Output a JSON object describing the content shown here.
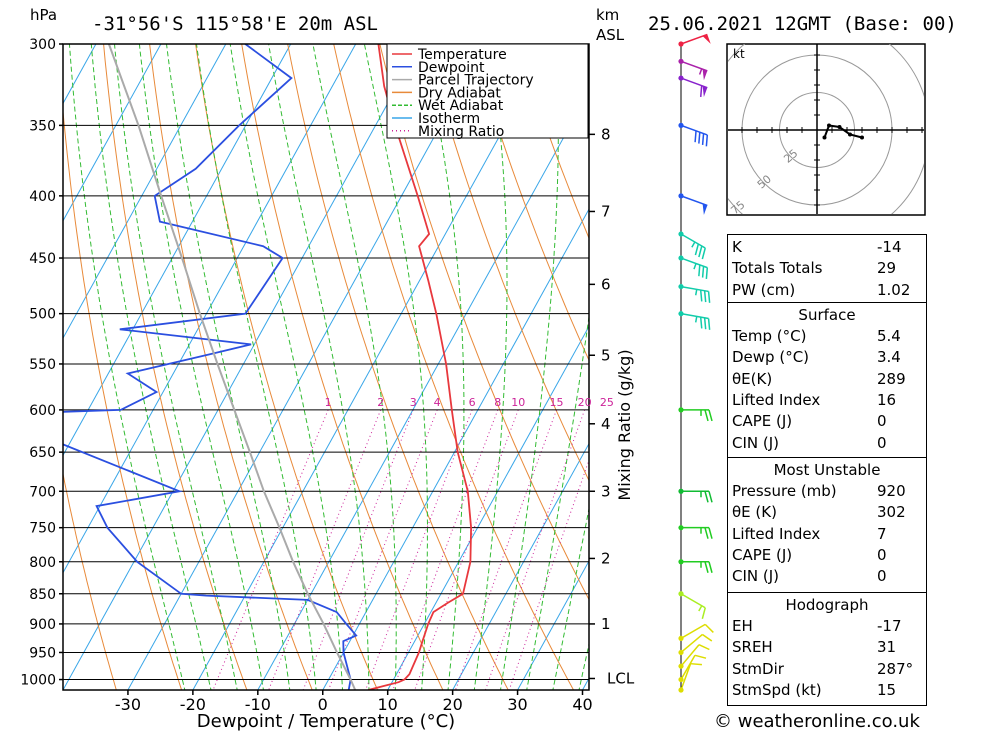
{
  "header": {
    "title": "-31°56'S  115°58'E  20m  ASL",
    "datetime": "25.06.2021  12GMT  (Base: 00)",
    "left_unit": "hPa",
    "right_unit_top": "km",
    "right_unit_bottom": "ASL"
  },
  "legend": {
    "items": [
      {
        "label": "Temperature",
        "color": "#e8383d",
        "style": "solid"
      },
      {
        "label": "Dewpoint",
        "color": "#2b4fe0",
        "style": "solid"
      },
      {
        "label": "Parcel Trajectory",
        "color": "#aaaaaa",
        "style": "solid"
      },
      {
        "label": "Dry Adiabat",
        "color": "#e88a3a",
        "style": "solid"
      },
      {
        "label": "Wet Adiabat",
        "color": "#33bb33",
        "style": "dashed"
      },
      {
        "label": "Isotherm",
        "color": "#39a6e8",
        "style": "solid"
      },
      {
        "label": "Mixing Ratio",
        "color": "#cc2299",
        "style": "dotted"
      }
    ]
  },
  "chart_data": {
    "type": "skew-t",
    "xlabel": "Dewpoint / Temperature (°C)",
    "x_ticks": [
      -30,
      -20,
      -10,
      0,
      10,
      20,
      30,
      40
    ],
    "x_range": [
      -40,
      41
    ],
    "p_ticks": [
      300,
      350,
      400,
      450,
      500,
      550,
      600,
      650,
      700,
      750,
      800,
      850,
      900,
      950,
      1000
    ],
    "p_range": [
      300,
      1020
    ],
    "skew_deg_per_log": 45,
    "height_axis": {
      "label": "Mixing Ratio (g/kg)",
      "km_ticks": [
        {
          "label": "8",
          "p": 356
        },
        {
          "label": "7",
          "p": 412
        },
        {
          "label": "6",
          "p": 473
        },
        {
          "label": "5",
          "p": 541
        },
        {
          "label": "4",
          "p": 616
        },
        {
          "label": "3",
          "p": 700
        },
        {
          "label": "2",
          "p": 795
        },
        {
          "label": "1",
          "p": 900
        },
        {
          "label": "LCL",
          "p": 998
        }
      ]
    },
    "mixing_ratio_labels": [
      "1",
      "2",
      "3",
      "4",
      "6",
      "8",
      "10",
      "15",
      "20",
      "25"
    ],
    "mixing_ratio_values": [
      1,
      2,
      3,
      4,
      6,
      8,
      10,
      15,
      20,
      25
    ],
    "series": [
      {
        "name": "Temperature",
        "color": "#e8383d",
        "points": [
          [
            1020,
            7.0
          ],
          [
            1005,
            11.0
          ],
          [
            1000,
            11.7
          ],
          [
            990,
            12.0
          ],
          [
            950,
            11.6
          ],
          [
            930,
            11.2
          ],
          [
            900,
            10.6
          ],
          [
            880,
            10.4
          ],
          [
            865,
            11.8
          ],
          [
            850,
            13.4
          ],
          [
            800,
            11.8
          ],
          [
            750,
            9.0
          ],
          [
            700,
            5.4
          ],
          [
            650,
            0.5
          ],
          [
            600,
            -4.0
          ],
          [
            550,
            -8.8
          ],
          [
            500,
            -14.6
          ],
          [
            470,
            -18.6
          ],
          [
            440,
            -23.0
          ],
          [
            430,
            -22.5
          ],
          [
            400,
            -27.5
          ],
          [
            350,
            -37.0
          ],
          [
            325,
            -42.0
          ],
          [
            300,
            -46.5
          ]
        ]
      },
      {
        "name": "Dewpoint",
        "color": "#2b4fe0",
        "points": [
          [
            1020,
            4.0
          ],
          [
            1000,
            3.4
          ],
          [
            950,
            0.0
          ],
          [
            930,
            -1.0
          ],
          [
            920,
            0.5
          ],
          [
            900,
            -2.0
          ],
          [
            880,
            -4.5
          ],
          [
            860,
            -10.0
          ],
          [
            853,
            -26.0
          ],
          [
            850,
            -30.0
          ],
          [
            800,
            -39.5
          ],
          [
            750,
            -47.0
          ],
          [
            720,
            -50.5
          ],
          [
            700,
            -39.0
          ],
          [
            605,
            -75.0
          ],
          [
            600,
            -55.0
          ],
          [
            580,
            -51.0
          ],
          [
            560,
            -57.0
          ],
          [
            540,
            -46.0
          ],
          [
            530,
            -40.5
          ],
          [
            515,
            -62.0
          ],
          [
            500,
            -44.0
          ],
          [
            450,
            -43.0
          ],
          [
            440,
            -47.0
          ],
          [
            420,
            -65.0
          ],
          [
            400,
            -68.0
          ],
          [
            380,
            -64.0
          ],
          [
            350,
            -61.0
          ],
          [
            320,
            -57.0
          ],
          [
            300,
            -67.0
          ]
        ]
      },
      {
        "name": "Parcel Trajectory",
        "color": "#aaaaaa",
        "points": [
          [
            1020,
            5.0
          ],
          [
            1000,
            3.4
          ],
          [
            950,
            -1.0
          ],
          [
            900,
            -5.5
          ],
          [
            850,
            -10.5
          ],
          [
            800,
            -15.5
          ],
          [
            750,
            -20.5
          ],
          [
            700,
            -26.0
          ],
          [
            650,
            -31.5
          ],
          [
            600,
            -37.5
          ],
          [
            550,
            -44.0
          ],
          [
            500,
            -51.0
          ],
          [
            450,
            -58.5
          ],
          [
            400,
            -67.0
          ],
          [
            350,
            -76.5
          ],
          [
            300,
            -88.0
          ]
        ]
      }
    ],
    "wind_barbs": [
      {
        "p": 1020,
        "dir": 200,
        "spd": 10,
        "color": "#dddd00"
      },
      {
        "p": 1000,
        "dir": 210,
        "spd": 10,
        "color": "#dddd00"
      },
      {
        "p": 975,
        "dir": 220,
        "spd": 10,
        "color": "#dddd00"
      },
      {
        "p": 950,
        "dir": 230,
        "spd": 10,
        "color": "#dddd00"
      },
      {
        "p": 925,
        "dir": 240,
        "spd": 10,
        "color": "#dddd00"
      },
      {
        "p": 850,
        "dir": 300,
        "spd": 15,
        "color": "#aaee22"
      },
      {
        "p": 800,
        "dir": 270,
        "spd": 25,
        "color": "#22cc22"
      },
      {
        "p": 750,
        "dir": 270,
        "spd": 25,
        "color": "#22cc22"
      },
      {
        "p": 700,
        "dir": 270,
        "spd": 25,
        "color": "#11bb33"
      },
      {
        "p": 600,
        "dir": 270,
        "spd": 25,
        "color": "#22cc22"
      },
      {
        "p": 500,
        "dir": 280,
        "spd": 35,
        "color": "#11ccaa"
      },
      {
        "p": 475,
        "dir": 280,
        "spd": 35,
        "color": "#11ccaa"
      },
      {
        "p": 450,
        "dir": 290,
        "spd": 35,
        "color": "#11ccaa"
      },
      {
        "p": 430,
        "dir": 300,
        "spd": 35,
        "color": "#11ccaa"
      },
      {
        "p": 400,
        "dir": 290,
        "spd": 50,
        "color": "#2255ee"
      },
      {
        "p": 350,
        "dir": 290,
        "spd": 40,
        "color": "#2255ee"
      },
      {
        "p": 320,
        "dir": 290,
        "spd": 60,
        "color": "#8822cc"
      },
      {
        "p": 310,
        "dir": 290,
        "spd": 55,
        "color": "#aa22aa"
      },
      {
        "p": 300,
        "dir": 250,
        "spd": 50,
        "color": "#ee2244"
      }
    ],
    "hodograph": {
      "unit_label": "kt",
      "ring_labels": [
        "25",
        "50",
        "75"
      ],
      "ring_values": [
        25,
        50,
        75
      ],
      "trace": [
        [
          5,
          5
        ],
        [
          8,
          -3
        ],
        [
          15,
          -2
        ],
        [
          22,
          3
        ],
        [
          30,
          5
        ]
      ]
    }
  },
  "stats": {
    "index": [
      {
        "label": "K",
        "value": "-14"
      },
      {
        "label": "Totals Totals",
        "value": "29"
      },
      {
        "label": "PW (cm)",
        "value": "1.02"
      }
    ],
    "surface": {
      "title": "Surface",
      "rows": [
        {
          "label": "Temp (°C)",
          "value": "5.4"
        },
        {
          "label": "Dewp (°C)",
          "value": "3.4"
        },
        {
          "label": "θE(K)",
          "value": "289"
        },
        {
          "label": "Lifted Index",
          "value": "16"
        },
        {
          "label": "CAPE (J)",
          "value": "0"
        },
        {
          "label": "CIN (J)",
          "value": "0"
        }
      ]
    },
    "most_unstable": {
      "title": "Most Unstable",
      "rows": [
        {
          "label": "Pressure (mb)",
          "value": "920"
        },
        {
          "label": "θE (K)",
          "value": "302"
        },
        {
          "label": "Lifted Index",
          "value": "7"
        },
        {
          "label": "CAPE (J)",
          "value": "0"
        },
        {
          "label": "CIN (J)",
          "value": "0"
        }
      ]
    },
    "hodograph": {
      "title": "Hodograph",
      "rows": [
        {
          "label": "EH",
          "value": "-17"
        },
        {
          "label": "SREH",
          "value": "31"
        },
        {
          "label": "StmDir",
          "value": "287°"
        },
        {
          "label": "StmSpd (kt)",
          "value": "15"
        }
      ]
    }
  },
  "footer": {
    "credit": "© weatheronline.co.uk"
  }
}
